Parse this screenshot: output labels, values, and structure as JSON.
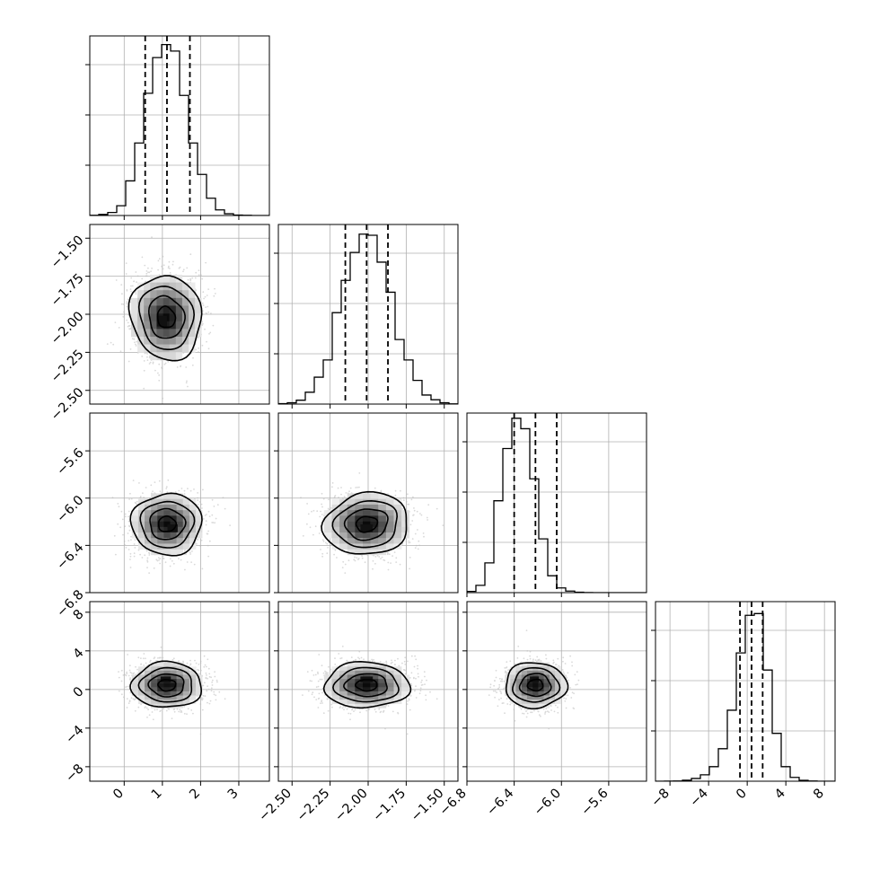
{
  "chart_data": {
    "type": "corner",
    "title": "",
    "parameters": [
      {
        "key": "p0",
        "range": [
          -0.9,
          3.8
        ],
        "ticks": [
          0,
          1,
          2,
          3
        ],
        "tick_labels": [
          "0",
          "1",
          "2",
          "3"
        ],
        "quantiles": [
          0.55,
          1.12,
          1.72
        ],
        "hist": {
          "edges": [
            -0.9,
            -0.665,
            -0.43,
            -0.195,
            0.04,
            0.275,
            0.51,
            0.745,
            0.98,
            1.215,
            1.45,
            1.685,
            1.92,
            2.155,
            2.39,
            2.625,
            2.86,
            3.095,
            3.33,
            3.565,
            3.8
          ],
          "counts": [
            1,
            5,
            14,
            45,
            160,
            335,
            565,
            730,
            790,
            760,
            555,
            335,
            190,
            80,
            26,
            8,
            2,
            1,
            0,
            0
          ],
          "ymax": 830
        }
      },
      {
        "key": "p1",
        "range": [
          -2.59,
          -1.41
        ],
        "ticks": [
          -2.5,
          -2.25,
          -2.0,
          -1.75,
          -1.5
        ],
        "tick_labels": [
          "−2.50",
          "−2.25",
          "−2.00",
          "−1.75",
          "−1.50"
        ],
        "quantiles": [
          -2.15,
          -2.01,
          -1.87
        ],
        "hist": {
          "edges": [
            -2.59,
            -2.531,
            -2.472,
            -2.413,
            -2.354,
            -2.295,
            -2.236,
            -2.177,
            -2.118,
            -2.059,
            -2.0,
            -1.941,
            -1.882,
            -1.823,
            -1.764,
            -1.705,
            -1.646,
            -1.587,
            -1.528,
            -1.469,
            -1.41
          ],
          "counts": [
            2,
            6,
            18,
            55,
            125,
            205,
            425,
            575,
            705,
            790,
            785,
            660,
            520,
            300,
            205,
            110,
            42,
            20,
            6,
            1
          ],
          "ymax": 835
        }
      },
      {
        "key": "p2",
        "range": [
          -6.8,
          -5.28
        ],
        "ticks": [
          -6.8,
          -6.4,
          -6.0,
          -5.6
        ],
        "tick_labels": [
          "−6.8",
          "−6.4",
          "−6.0",
          "−5.6"
        ],
        "quantiles": [
          -6.4,
          -6.22,
          -6.04
        ],
        "hist": {
          "edges": [
            -6.8,
            -6.724,
            -6.648,
            -6.572,
            -6.496,
            -6.42,
            -6.344,
            -6.268,
            -6.192,
            -6.116,
            -6.04,
            -5.964,
            -5.888,
            -5.812,
            -5.736,
            -5.66,
            -5.584,
            -5.508,
            -5.432,
            -5.356,
            -5.28
          ],
          "counts": [
            12,
            70,
            285,
            880,
            1380,
            1670,
            1570,
            1090,
            515,
            162,
            45,
            15,
            4,
            1,
            0,
            0,
            0,
            0,
            0,
            0
          ],
          "ymax": 1720
        }
      },
      {
        "key": "p3",
        "range": [
          -9.5,
          9.1
        ],
        "ticks": [
          -8,
          -4,
          0,
          4,
          8
        ],
        "tick_labels": [
          "−8",
          "−4",
          "0",
          "4",
          "8"
        ],
        "quantiles": [
          -0.75,
          0.45,
          1.6
        ],
        "hist": {
          "edges": [
            -9.5,
            -8.57,
            -7.64,
            -6.71,
            -5.78,
            -4.85,
            -3.92,
            -2.99,
            -2.06,
            -1.13,
            -0.2,
            0.73,
            1.66,
            2.59,
            3.52,
            4.45,
            5.38,
            6.31,
            7.24,
            8.17,
            9.1
          ],
          "counts": [
            0,
            1,
            3,
            12,
            32,
            75,
            170,
            380,
            830,
            1500,
            1940,
            1960,
            1300,
            560,
            170,
            45,
            10,
            2,
            0,
            0
          ],
          "ymax": 2100
        }
      }
    ],
    "pairs": [
      {
        "row": 1,
        "col": 0,
        "center": [
          1.1,
          -2.02
        ],
        "sigma": [
          0.46,
          0.14
        ],
        "rho": 0.0,
        "tilt": -0.25,
        "peak": [
          1.02,
          -2.05
        ]
      },
      {
        "row": 2,
        "col": 0,
        "center": [
          1.12,
          -6.22
        ],
        "sigma": [
          0.46,
          0.13
        ],
        "rho": 0.0,
        "tilt": 0.0,
        "peak": [
          1.3,
          -6.26
        ]
      },
      {
        "row": 2,
        "col": 1,
        "center": [
          -2.01,
          -6.22
        ],
        "sigma": [
          0.14,
          0.13
        ],
        "rho": 0.0,
        "tilt": -0.15,
        "peak": [
          -2.0,
          -6.26
        ]
      },
      {
        "row": 3,
        "col": 0,
        "center": [
          1.12,
          0.45
        ],
        "sigma": [
          0.46,
          1.18
        ],
        "rho": 0.0,
        "tilt": 0.0,
        "peak": [
          1.12,
          1.0
        ]
      },
      {
        "row": 3,
        "col": 1,
        "center": [
          -2.01,
          0.45
        ],
        "sigma": [
          0.14,
          1.18
        ],
        "rho": 0.0,
        "tilt": 0.0,
        "peak": [
          -2.0,
          1.0
        ]
      },
      {
        "row": 3,
        "col": 2,
        "center": [
          -6.22,
          0.45
        ],
        "sigma": [
          0.13,
          1.18
        ],
        "rho": 0.0,
        "tilt": 0.0,
        "peak": [
          -6.22,
          1.0
        ]
      }
    ],
    "contour_levels_sigma": [
      0.5,
      1.0,
      1.5,
      2.0
    ],
    "colors": {
      "line": "#000000",
      "grid": "#b0b0b0",
      "scatter": "#bbbbbb",
      "hist2d_dark": "#111111"
    },
    "grid": true,
    "legend": "none",
    "xlabel": "",
    "ylabel": ""
  }
}
